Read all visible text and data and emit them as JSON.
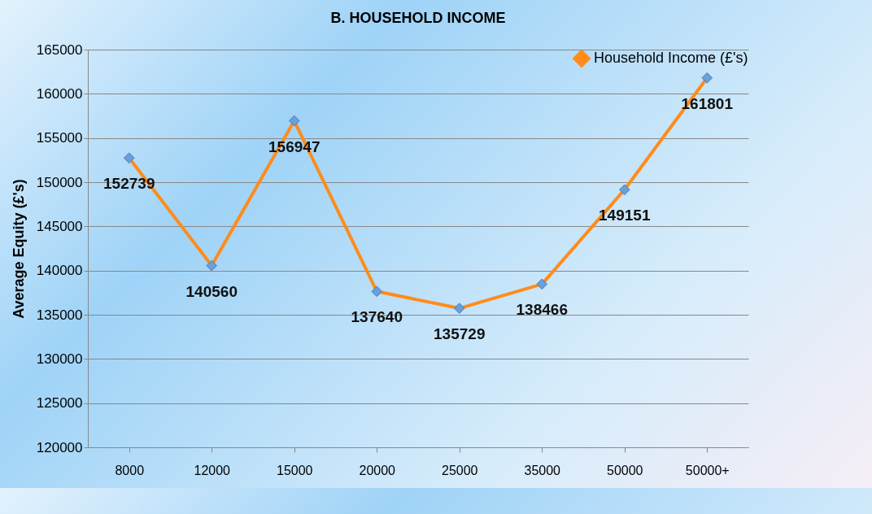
{
  "chart_data": {
    "type": "line",
    "title": "B. HOUSEHOLD INCOME",
    "ylabel": "Average Equity (£'s)",
    "categories": [
      "8000",
      "12000",
      "15000",
      "20000",
      "25000",
      "35000",
      "50000",
      "50000+"
    ],
    "series": [
      {
        "name": "Household Income (£'s)",
        "color": "#ff8c1a",
        "values": [
          152739,
          140560,
          156947,
          137640,
          135729,
          138466,
          149151,
          161801
        ]
      }
    ],
    "ylim": [
      120000,
      165000
    ],
    "yticks": [
      120000,
      125000,
      130000,
      135000,
      140000,
      145000,
      150000,
      155000,
      160000,
      165000
    ],
    "grid": "y",
    "legend": "top right",
    "marker": "diamond",
    "data_labels": true
  }
}
